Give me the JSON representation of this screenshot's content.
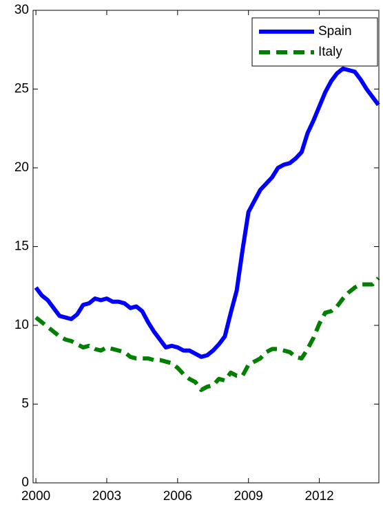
{
  "chart_data": {
    "type": "line",
    "x": [
      2000,
      2000.25,
      2000.5,
      2000.75,
      2001,
      2001.25,
      2001.5,
      2001.75,
      2002,
      2002.25,
      2002.5,
      2002.75,
      2003,
      2003.25,
      2003.5,
      2003.75,
      2004,
      2004.25,
      2004.5,
      2004.75,
      2005,
      2005.25,
      2005.5,
      2005.75,
      2006,
      2006.25,
      2006.5,
      2006.75,
      2007,
      2007.25,
      2007.5,
      2007.75,
      2008,
      2008.25,
      2008.5,
      2008.75,
      2009,
      2009.25,
      2009.5,
      2009.75,
      2010,
      2010.25,
      2010.5,
      2010.75,
      2011,
      2011.25,
      2011.5,
      2011.75,
      2012,
      2012.25,
      2012.5,
      2012.75,
      2013,
      2013.25,
      2013.5,
      2013.75,
      2014,
      2014.25,
      2014.5
    ],
    "series": [
      {
        "name": "Spain",
        "color": "#0000ff",
        "dash": "solid",
        "values": [
          12.4,
          11.9,
          11.6,
          11.1,
          10.6,
          10.5,
          10.4,
          10.7,
          11.3,
          11.4,
          11.7,
          11.6,
          11.7,
          11.5,
          11.5,
          11.4,
          11.1,
          11.2,
          10.9,
          10.2,
          9.6,
          9.1,
          8.6,
          8.7,
          8.6,
          8.4,
          8.4,
          8.2,
          8.0,
          8.1,
          8.4,
          8.8,
          9.3,
          10.8,
          12.2,
          14.8,
          17.2,
          17.9,
          18.6,
          19.0,
          19.4,
          20.0,
          20.2,
          20.3,
          20.6,
          21.0,
          22.2,
          23.0,
          23.9,
          24.8,
          25.5,
          26.0,
          26.3,
          26.2,
          26.1,
          25.6,
          25.0,
          24.5,
          24.0
        ]
      },
      {
        "name": "Italy",
        "color": "#007f00",
        "dash": "dashed",
        "values": [
          10.5,
          10.2,
          9.9,
          9.6,
          9.3,
          9.1,
          9.0,
          8.8,
          8.6,
          8.7,
          8.5,
          8.4,
          8.6,
          8.5,
          8.4,
          8.3,
          8.0,
          7.9,
          7.9,
          7.9,
          7.8,
          7.8,
          7.7,
          7.6,
          7.3,
          6.9,
          6.6,
          6.4,
          5.9,
          6.1,
          6.2,
          6.6,
          6.5,
          7.0,
          6.8,
          6.8,
          7.5,
          7.7,
          7.9,
          8.3,
          8.5,
          8.5,
          8.4,
          8.3,
          8.0,
          7.9,
          8.5,
          9.2,
          10.1,
          10.8,
          10.9,
          11.2,
          11.7,
          12.1,
          12.4,
          12.6,
          12.6,
          12.6,
          13.0
        ]
      }
    ],
    "xlim": [
      1999.88,
      2014.52
    ],
    "xticks": [
      2000,
      2003,
      2006,
      2009,
      2012
    ],
    "ylim": [
      0,
      30
    ],
    "yticks": [
      0,
      5,
      10,
      15,
      20,
      25,
      30
    ],
    "legend": "upper right"
  }
}
